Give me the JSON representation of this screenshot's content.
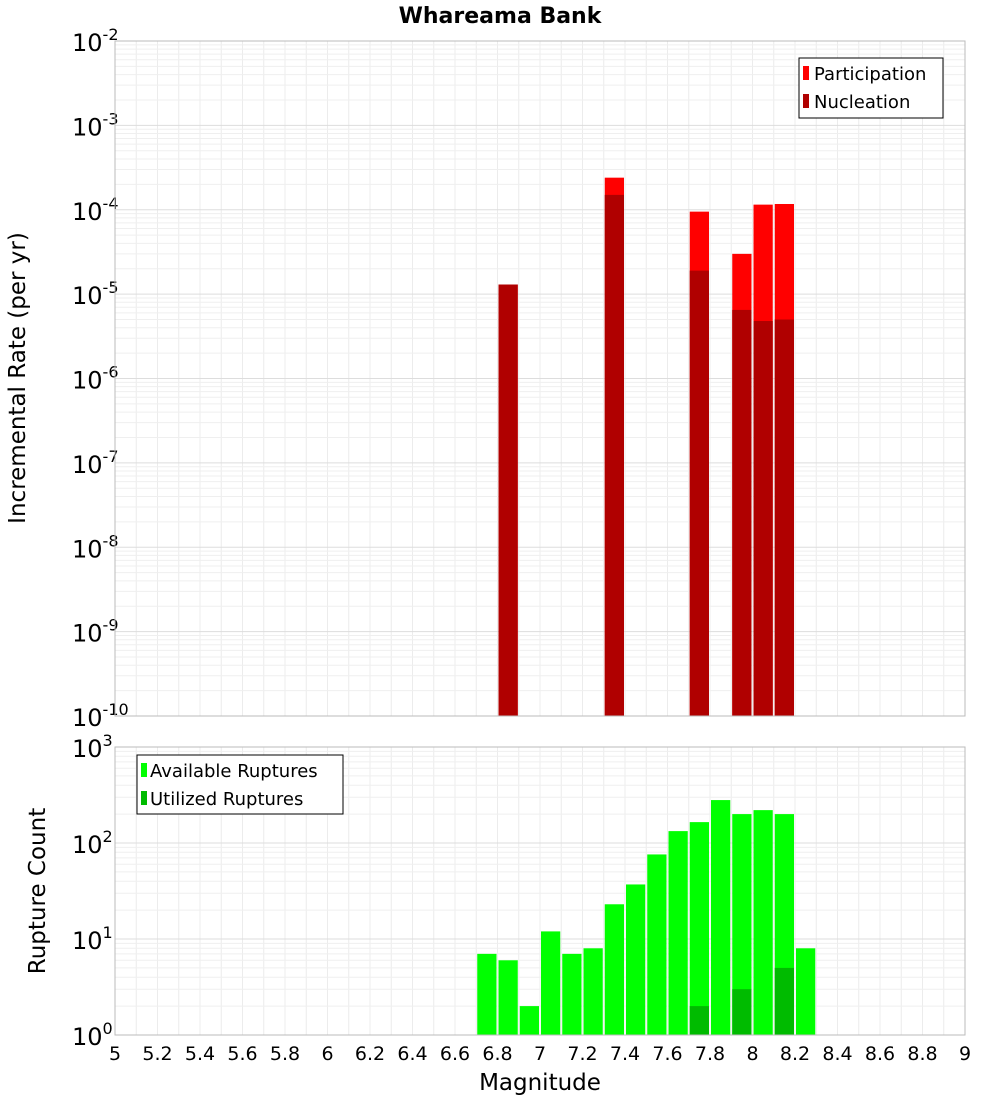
{
  "chart_data": [
    {
      "type": "bar",
      "panel": "top",
      "title": "Whareama Bank",
      "ylabel": "Incremental Rate (per yr)",
      "xlabel": "",
      "yscale": "log",
      "ylim_exp": [
        -10,
        -2
      ],
      "xlim": [
        5,
        9
      ],
      "grid": true,
      "legend_position": "top-right",
      "series": [
        {
          "name": "Participation",
          "color": "#ff0000",
          "points": [
            {
              "x": 6.85,
              "y": 1.3e-05
            },
            {
              "x": 7.35,
              "y": 0.00024
            },
            {
              "x": 7.75,
              "y": 9.5e-05
            },
            {
              "x": 7.95,
              "y": 3e-05
            },
            {
              "x": 8.05,
              "y": 0.000115
            },
            {
              "x": 8.15,
              "y": 0.000117
            }
          ]
        },
        {
          "name": "Nucleation",
          "color": "#b00000",
          "points": [
            {
              "x": 6.85,
              "y": 1.3e-05
            },
            {
              "x": 7.35,
              "y": 0.00015
            },
            {
              "x": 7.75,
              "y": 1.9e-05
            },
            {
              "x": 7.95,
              "y": 6.5e-06
            },
            {
              "x": 8.05,
              "y": 4.8e-06
            },
            {
              "x": 8.15,
              "y": 5e-06
            }
          ]
        }
      ]
    },
    {
      "type": "bar",
      "panel": "bottom",
      "ylabel": "Rupture Count",
      "xlabel": "Magnitude",
      "yscale": "log",
      "ylim_exp": [
        0,
        3
      ],
      "xlim": [
        5,
        9
      ],
      "grid": true,
      "legend_position": "top-left",
      "series": [
        {
          "name": "Available Ruptures",
          "color": "#00ff00",
          "points": [
            {
              "x": 6.75,
              "y": 7
            },
            {
              "x": 6.85,
              "y": 6
            },
            {
              "x": 6.95,
              "y": 2
            },
            {
              "x": 7.05,
              "y": 12
            },
            {
              "x": 7.15,
              "y": 7
            },
            {
              "x": 7.25,
              "y": 8
            },
            {
              "x": 7.35,
              "y": 23
            },
            {
              "x": 7.45,
              "y": 37
            },
            {
              "x": 7.55,
              "y": 76
            },
            {
              "x": 7.65,
              "y": 133
            },
            {
              "x": 7.75,
              "y": 165
            },
            {
              "x": 7.85,
              "y": 280
            },
            {
              "x": 7.95,
              "y": 200
            },
            {
              "x": 8.05,
              "y": 220
            },
            {
              "x": 8.15,
              "y": 200
            },
            {
              "x": 8.25,
              "y": 8
            }
          ]
        },
        {
          "name": "Utilized Ruptures",
          "color": "#00bb00",
          "points": [
            {
              "x": 6.85,
              "y": 1
            },
            {
              "x": 7.35,
              "y": 1
            },
            {
              "x": 7.75,
              "y": 2
            },
            {
              "x": 7.95,
              "y": 3
            },
            {
              "x": 8.05,
              "y": 1
            },
            {
              "x": 8.15,
              "y": 5
            }
          ]
        }
      ]
    }
  ],
  "xtick_labels": [
    "5",
    "5.2",
    "5.4",
    "5.6",
    "5.8",
    "6",
    "6.2",
    "6.4",
    "6.6",
    "6.8",
    "7",
    "7.2",
    "7.4",
    "7.6",
    "7.8",
    "8",
    "8.2",
    "8.4",
    "8.6",
    "8.8",
    "9"
  ],
  "top_ytick_exponents": [
    "-10",
    "-9",
    "-8",
    "-7",
    "-6",
    "-5",
    "-4",
    "-3",
    "-2"
  ],
  "bottom_ytick_exponents": [
    "0",
    "1",
    "2",
    "3"
  ],
  "ytick_base": "10"
}
